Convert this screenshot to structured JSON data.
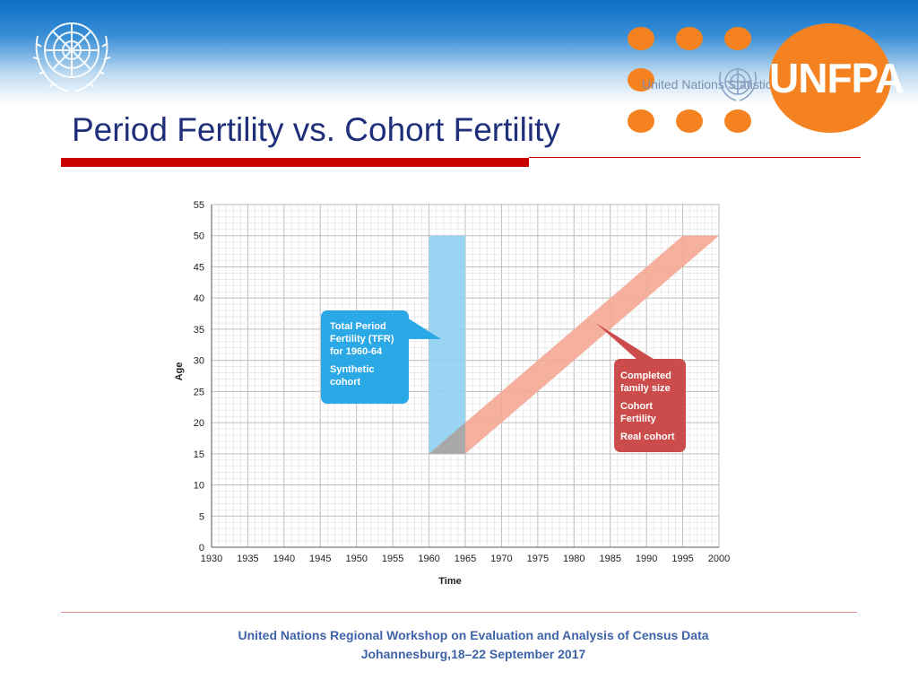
{
  "header": {
    "title": "Period Fertility vs. Cohort Fertility",
    "logo_text": "UNFPA",
    "partner_text": "United Nations Statistics",
    "colors": {
      "title": "#1f2f7a",
      "accent": "#c80000",
      "unfpa": "#f58220",
      "header": "#0b6fc4"
    }
  },
  "chart_data": {
    "type": "diagram",
    "xlabel": "Time",
    "ylabel": "Age",
    "x_ticks": [
      "1930",
      "1935",
      "1940",
      "1945",
      "1950",
      "1955",
      "1960",
      "1965",
      "1970",
      "1975",
      "1980",
      "1985",
      "1990",
      "1995",
      "2000"
    ],
    "y_ticks": [
      "0",
      "5",
      "10",
      "15",
      "20",
      "25",
      "30",
      "35",
      "40",
      "45",
      "50",
      "55"
    ],
    "xlim": [
      1930,
      2000
    ],
    "ylim": [
      0,
      55
    ],
    "grid": true,
    "period_band": {
      "x0": 1960,
      "x1": 1965,
      "y0": 15,
      "y1": 50,
      "color": "#8fd0f2"
    },
    "cohort_band": {
      "x0": 1960,
      "x1": 1965,
      "y0": 15,
      "y1": 50,
      "color": "#f4a793"
    },
    "overlap_color": "#a9a9a9",
    "callouts": [
      {
        "lines": [
          "Total Period",
          "Fertility (TFR)",
          "for 1960-64",
          "",
          "Synthetic",
          "cohort"
        ],
        "color": "#2ba8e6",
        "points_to": [
          1962,
          33
        ]
      },
      {
        "lines": [
          "Completed",
          "family size",
          "",
          "Cohort",
          "Fertility",
          "",
          "Real cohort"
        ],
        "color": "#cc4c4c",
        "points_to": [
          1983,
          36
        ]
      }
    ]
  },
  "footer": {
    "line1": "United Nations Regional Workshop on Evaluation and Analysis of Census Data",
    "line2": "Johannesburg,18–22 September 2017"
  }
}
